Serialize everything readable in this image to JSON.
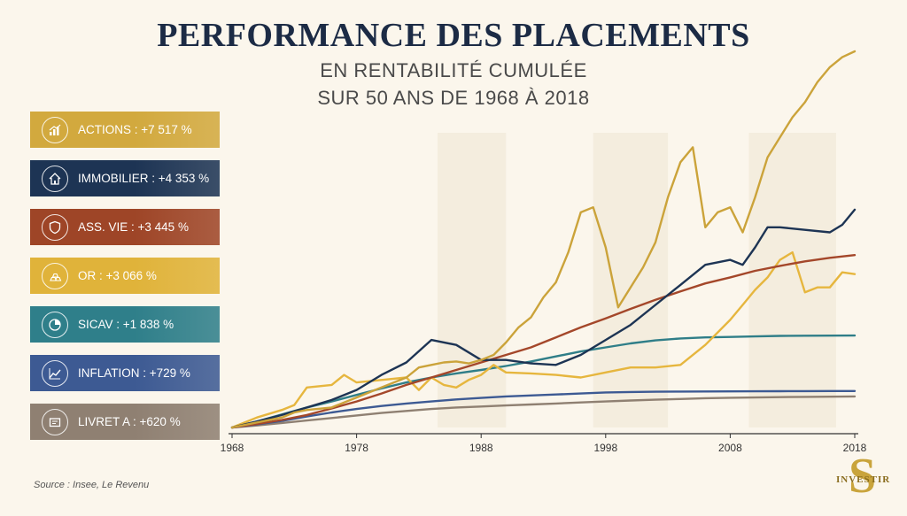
{
  "header": {
    "title": "PERFORMANCE DES PLACEMENTS",
    "subtitle_line1": "EN RENTABILITÉ CUMULÉE",
    "subtitle_line2": "SUR 50 ANS DE 1968 À 2018"
  },
  "legend": [
    {
      "label": "ACTIONS : +7 517 %",
      "color": "#d2a93e",
      "icon": "bar-chart-icon"
    },
    {
      "label": "IMMOBILIER : +4 353 %",
      "color": "#1d3454",
      "icon": "house-icon"
    },
    {
      "label": "ASS. VIE : +3 445 %",
      "color": "#9e4527",
      "icon": "shield-icon"
    },
    {
      "label": "OR : +3 066 %",
      "color": "#e0b33a",
      "icon": "gold-bars-icon"
    },
    {
      "label": "SICAV : +1 838 %",
      "color": "#2f7f8a",
      "icon": "pie-chart-icon"
    },
    {
      "label": "INFLATION : +729 %",
      "color": "#3d5a93",
      "icon": "line-chart-icon"
    },
    {
      "label": "LIVRET A : +620 %",
      "color": "#8f8072",
      "icon": "passbook-icon"
    }
  ],
  "chart_data": {
    "type": "line",
    "xlim": [
      1968,
      2018
    ],
    "xticks": [
      1968,
      1978,
      1988,
      1998,
      2008,
      2018
    ],
    "ylim": [
      0,
      7517
    ],
    "yaxis_visible": false,
    "grid": false,
    "legend_position": "left",
    "series": [
      {
        "name": "ACTIONS : +7 517 %",
        "color": "#cba33a",
        "x": [
          1968,
          1970,
          1972,
          1973,
          1974,
          1976,
          1977,
          1978,
          1979,
          1980,
          1982,
          1983,
          1984,
          1985,
          1986,
          1987,
          1988,
          1989,
          1990,
          1991,
          1992,
          1993,
          1994,
          1995,
          1996,
          1997,
          1998,
          1999,
          2000,
          2001,
          2002,
          2003,
          2004,
          2005,
          2006,
          2007,
          2008,
          2009,
          2010,
          2011,
          2012,
          2013,
          2014,
          2015,
          2016,
          2017,
          2018
        ],
        "y": [
          0,
          100,
          200,
          300,
          350,
          400,
          500,
          600,
          700,
          800,
          1000,
          1200,
          1250,
          1300,
          1320,
          1280,
          1350,
          1450,
          1700,
          2000,
          2200,
          2600,
          2900,
          3500,
          4300,
          4400,
          3600,
          2400,
          2800,
          3200,
          3700,
          4600,
          5300,
          5600,
          4000,
          4300,
          4400,
          3900,
          4600,
          5400,
          5800,
          6200,
          6500,
          6900,
          7200,
          7400,
          7517
        ]
      },
      {
        "name": "IMMOBILIER : +4 353 %",
        "color": "#1d3454",
        "x": [
          1968,
          1970,
          1972,
          1974,
          1976,
          1978,
          1980,
          1982,
          1984,
          1986,
          1988,
          1990,
          1992,
          1994,
          1996,
          1998,
          2000,
          2002,
          2004,
          2006,
          2008,
          2009,
          2010,
          2011,
          2012,
          2014,
          2016,
          2017,
          2018
        ],
        "y": [
          0,
          120,
          250,
          400,
          550,
          750,
          1050,
          1300,
          1750,
          1650,
          1350,
          1350,
          1280,
          1250,
          1450,
          1750,
          2050,
          2450,
          2850,
          3250,
          3350,
          3250,
          3600,
          4000,
          4000,
          3950,
          3900,
          4050,
          4353
        ]
      },
      {
        "name": "ASS. VIE : +3 445 %",
        "color": "#a4472a",
        "x": [
          1968,
          1970,
          1972,
          1974,
          1976,
          1978,
          1980,
          1982,
          1984,
          1986,
          1988,
          1990,
          1992,
          1994,
          1996,
          1998,
          2000,
          2002,
          2004,
          2006,
          2008,
          2010,
          2012,
          2014,
          2016,
          2018
        ],
        "y": [
          0,
          70,
          150,
          250,
          380,
          520,
          680,
          850,
          1000,
          1150,
          1300,
          1450,
          1600,
          1800,
          2000,
          2180,
          2370,
          2550,
          2720,
          2880,
          3000,
          3130,
          3230,
          3320,
          3390,
          3445
        ]
      },
      {
        "name": "OR : +3 066 %",
        "color": "#e6b63e",
        "x": [
          1968,
          1970,
          1972,
          1973,
          1974,
          1976,
          1977,
          1978,
          1980,
          1982,
          1983,
          1984,
          1985,
          1986,
          1987,
          1988,
          1989,
          1990,
          1992,
          1994,
          1996,
          1998,
          2000,
          2002,
          2004,
          2006,
          2008,
          2009,
          2010,
          2011,
          2012,
          2013,
          2014,
          2015,
          2016,
          2017,
          2018
        ],
        "y": [
          0,
          200,
          350,
          450,
          800,
          850,
          1050,
          900,
          950,
          1000,
          750,
          1000,
          850,
          800,
          950,
          1050,
          1250,
          1100,
          1080,
          1050,
          1000,
          1100,
          1200,
          1200,
          1250,
          1650,
          2150,
          2450,
          2750,
          3000,
          3350,
          3500,
          2700,
          2800,
          2800,
          3100,
          3066
        ]
      },
      {
        "name": "SICAV : +1 838 %",
        "color": "#2f7e88",
        "x": [
          1968,
          1970,
          1972,
          1974,
          1976,
          1978,
          1980,
          1982,
          1984,
          1986,
          1988,
          1990,
          1992,
          1994,
          1996,
          1998,
          2000,
          2002,
          2004,
          2006,
          2008,
          2010,
          2012,
          2014,
          2016,
          2018
        ],
        "y": [
          0,
          120,
          260,
          400,
          520,
          650,
          780,
          900,
          1000,
          1080,
          1150,
          1230,
          1320,
          1420,
          1520,
          1600,
          1680,
          1740,
          1780,
          1800,
          1810,
          1820,
          1830,
          1835,
          1836,
          1838
        ]
      },
      {
        "name": "INFLATION : +729 %",
        "color": "#3d5a93",
        "x": [
          1968,
          1970,
          1972,
          1974,
          1976,
          1978,
          1980,
          1982,
          1984,
          1986,
          1988,
          1990,
          1992,
          1994,
          1996,
          1998,
          2000,
          2002,
          2004,
          2006,
          2008,
          2010,
          2012,
          2014,
          2016,
          2018
        ],
        "y": [
          0,
          60,
          130,
          220,
          300,
          370,
          430,
          480,
          520,
          560,
          590,
          620,
          640,
          660,
          680,
          700,
          710,
          715,
          718,
          720,
          722,
          724,
          726,
          727,
          728,
          729
        ]
      },
      {
        "name": "LIVRET A : +620 %",
        "color": "#8f8072",
        "x": [
          1968,
          1970,
          1972,
          1974,
          1976,
          1978,
          1980,
          1982,
          1984,
          1986,
          1988,
          1990,
          1992,
          1994,
          1996,
          1998,
          2000,
          2002,
          2004,
          2006,
          2008,
          2010,
          2012,
          2014,
          2016,
          2018
        ],
        "y": [
          0,
          40,
          90,
          140,
          190,
          240,
          290,
          330,
          370,
          400,
          420,
          440,
          460,
          480,
          500,
          520,
          540,
          555,
          570,
          585,
          595,
          600,
          607,
          612,
          616,
          620
        ]
      }
    ]
  },
  "footer": {
    "source": "Source : Insee, Le Revenu",
    "logo_initial": "S",
    "logo_word": "INVESTIR"
  }
}
